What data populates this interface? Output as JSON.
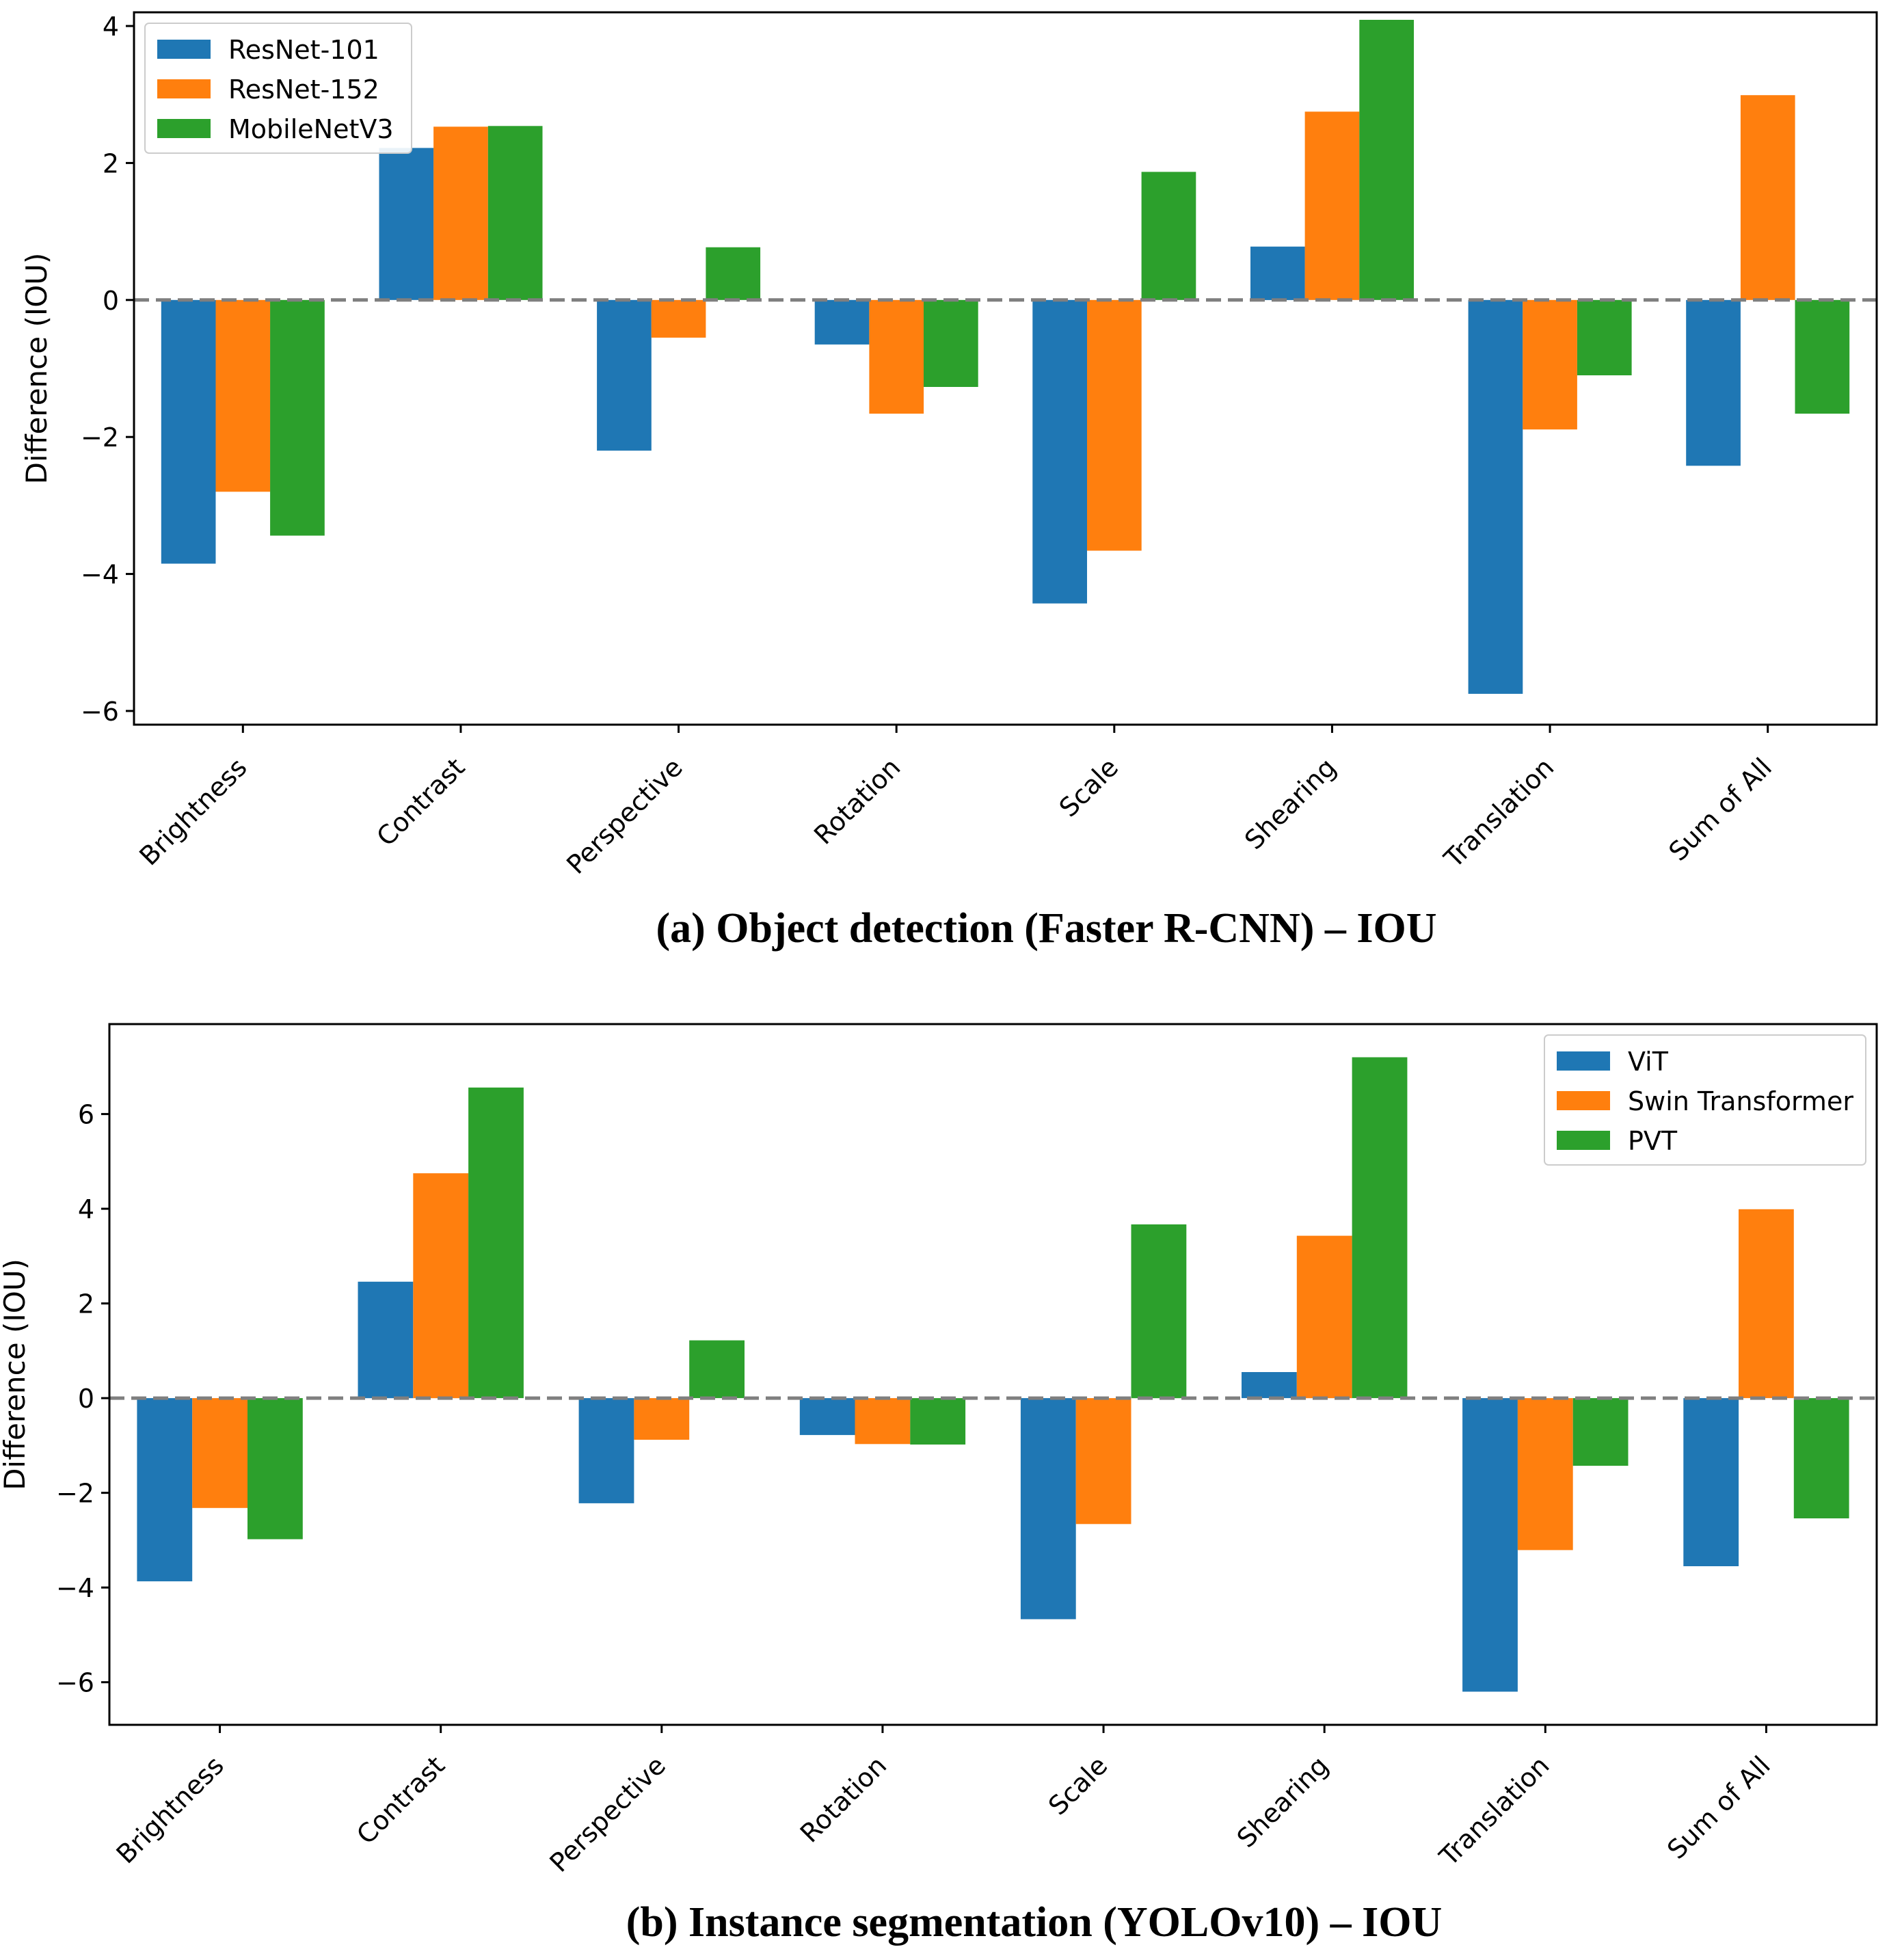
{
  "chart_data": [
    {
      "type": "bar",
      "title": "(a) Object detection (Faster R-CNN) – IOU",
      "xlabel": "",
      "ylabel": "Difference (IOU)",
      "ylim": [
        -6.2,
        4.2
      ],
      "yticks": [
        4,
        2,
        0,
        -2,
        -4,
        -6
      ],
      "ytick_labels": [
        "4",
        "2",
        "0",
        "−2",
        "−4",
        "−6"
      ],
      "categories": [
        "Brightness",
        "Contrast",
        "Perspective",
        "Rotation",
        "Scale",
        "Shearing",
        "Translation",
        "Sum of All"
      ],
      "legend_position": "top-left",
      "series": [
        {
          "name": "ResNet-101",
          "color": "#1f77b4",
          "values": [
            -3.85,
            2.22,
            -2.2,
            -0.65,
            -4.43,
            0.78,
            -5.75,
            -2.42
          ]
        },
        {
          "name": "ResNet-152",
          "color": "#ff7f0e",
          "values": [
            -2.8,
            2.53,
            -0.55,
            -1.66,
            -3.66,
            2.75,
            -1.89,
            2.99
          ]
        },
        {
          "name": "MobileNetV3",
          "color": "#2ca02c",
          "values": [
            -3.44,
            2.54,
            0.77,
            -1.27,
            1.87,
            4.09,
            -1.1,
            -1.66
          ]
        }
      ]
    },
    {
      "type": "bar",
      "title": "(b) Instance segmentation (YOLOv10) – IOU",
      "xlabel": "",
      "ylabel": "Difference (IOU)",
      "ylim": [
        -6.9,
        7.9
      ],
      "yticks": [
        6,
        4,
        2,
        0,
        -2,
        -4,
        -6
      ],
      "ytick_labels": [
        "6",
        "4",
        "2",
        "0",
        "−2",
        "−4",
        "−6"
      ],
      "categories": [
        "Brightness",
        "Contrast",
        "Perspective",
        "Rotation",
        "Scale",
        "Shearing",
        "Translation",
        "Sum of All"
      ],
      "legend_position": "top-right",
      "series": [
        {
          "name": "ViT",
          "color": "#1f77b4",
          "values": [
            -3.87,
            2.46,
            -2.22,
            -0.78,
            -4.67,
            0.55,
            -6.2,
            -3.55
          ]
        },
        {
          "name": "Swin Transformer",
          "color": "#ff7f0e",
          "values": [
            -2.32,
            4.75,
            -0.88,
            -0.97,
            -2.66,
            3.43,
            -3.21,
            3.99
          ]
        },
        {
          "name": "PVT",
          "color": "#2ca02c",
          "values": [
            -2.98,
            6.56,
            1.22,
            -0.98,
            3.67,
            7.2,
            -1.43,
            -2.54
          ]
        }
      ]
    }
  ]
}
